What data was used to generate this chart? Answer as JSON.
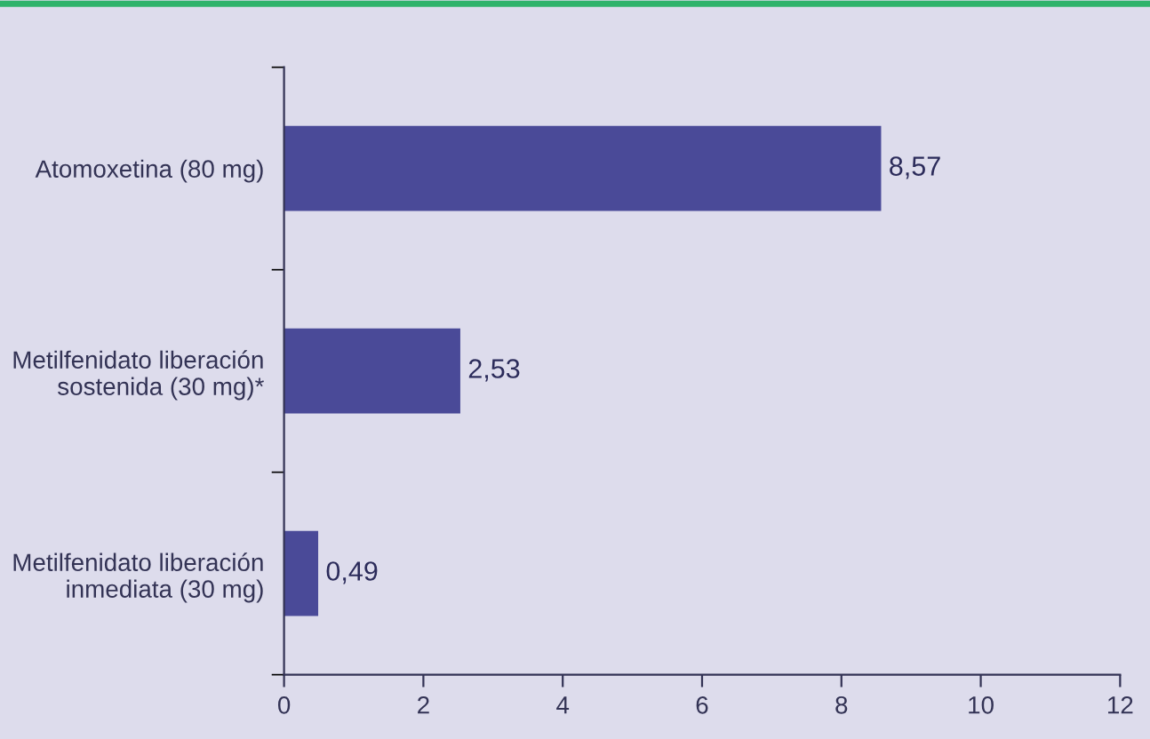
{
  "chart_data": {
    "type": "bar",
    "orientation": "horizontal",
    "categories": [
      "Atomoxetina (80 mg)",
      "Metilfenidato liberación\nsostenida (30 mg)*",
      "Metilfenidato liberación\ninmediata (30 mg)"
    ],
    "values": [
      8.57,
      2.53,
      0.49
    ],
    "value_labels": [
      "8,57",
      "2,53",
      "0,49"
    ],
    "color": "#4a4a98",
    "xlim": [
      0,
      12
    ],
    "xticks": [
      0,
      2,
      4,
      6,
      8,
      10,
      12
    ],
    "grid": false,
    "legend": false
  }
}
